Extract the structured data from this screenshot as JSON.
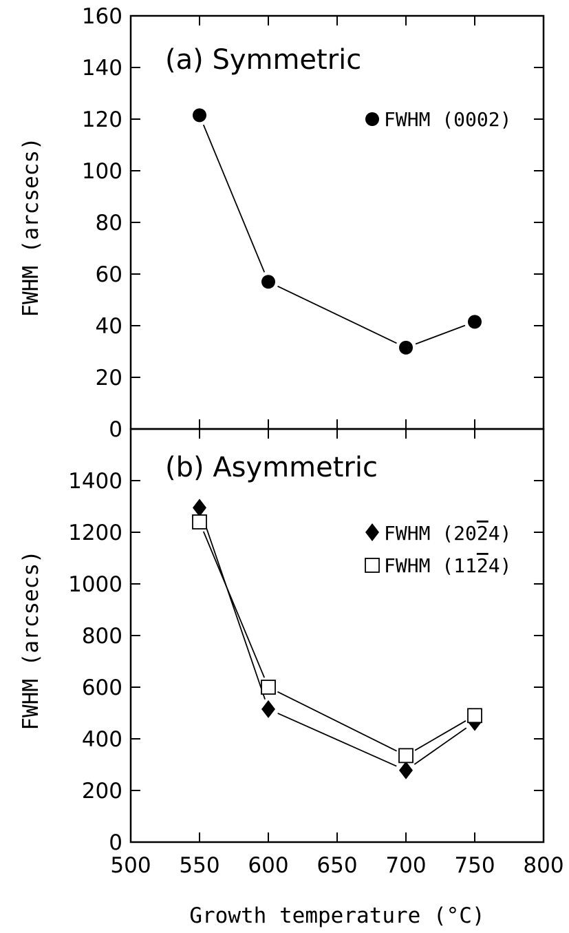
{
  "chart_data": [
    {
      "type": "line",
      "panel_title": "(a) Symmetric",
      "ylabel": "FWHM (arcsecs)",
      "xlabel": "",
      "xlim": [
        500,
        800
      ],
      "ylim": [
        0,
        160
      ],
      "y_ticks": [
        "0",
        "20",
        "40",
        "60",
        "80",
        "100",
        "120",
        "140",
        "160"
      ],
      "x_ticks": [],
      "legend_position": "top-right",
      "grid": false,
      "series": [
        {
          "name": "FWHM (0002)",
          "marker": "filled-circle",
          "x": [
            550,
            600,
            700,
            750
          ],
          "values": [
            121.5,
            57,
            31.5,
            41.5
          ]
        }
      ]
    },
    {
      "type": "line",
      "panel_title": "(b) Asymmetric",
      "ylabel": "FWHM (arcsecs)",
      "xlabel": "Growth temperature (°C)",
      "xlim": [
        500,
        800
      ],
      "ylim": [
        0,
        1600
      ],
      "y_ticks": [
        "0",
        "200",
        "400",
        "600",
        "800",
        "1000",
        "1200",
        "1400"
      ],
      "x_ticks": [
        "500",
        "550",
        "600",
        "650",
        "700",
        "750",
        "800"
      ],
      "legend_position": "top-right",
      "grid": false,
      "series": [
        {
          "name": "FWHM (2024)",
          "name_prefix": "FWHM (20",
          "name_overbar": "2",
          "name_suffix": "4)",
          "marker": "filled-diamond",
          "x": [
            550,
            600,
            700,
            750
          ],
          "values": [
            1295,
            515,
            278,
            465
          ]
        },
        {
          "name": "FWHM (1124)",
          "name_prefix": "FWHM (11",
          "name_overbar": "2",
          "name_suffix": "4)",
          "marker": "open-square",
          "x": [
            550,
            600,
            700,
            750
          ],
          "values": [
            1240,
            600,
            335,
            490
          ]
        }
      ]
    }
  ]
}
